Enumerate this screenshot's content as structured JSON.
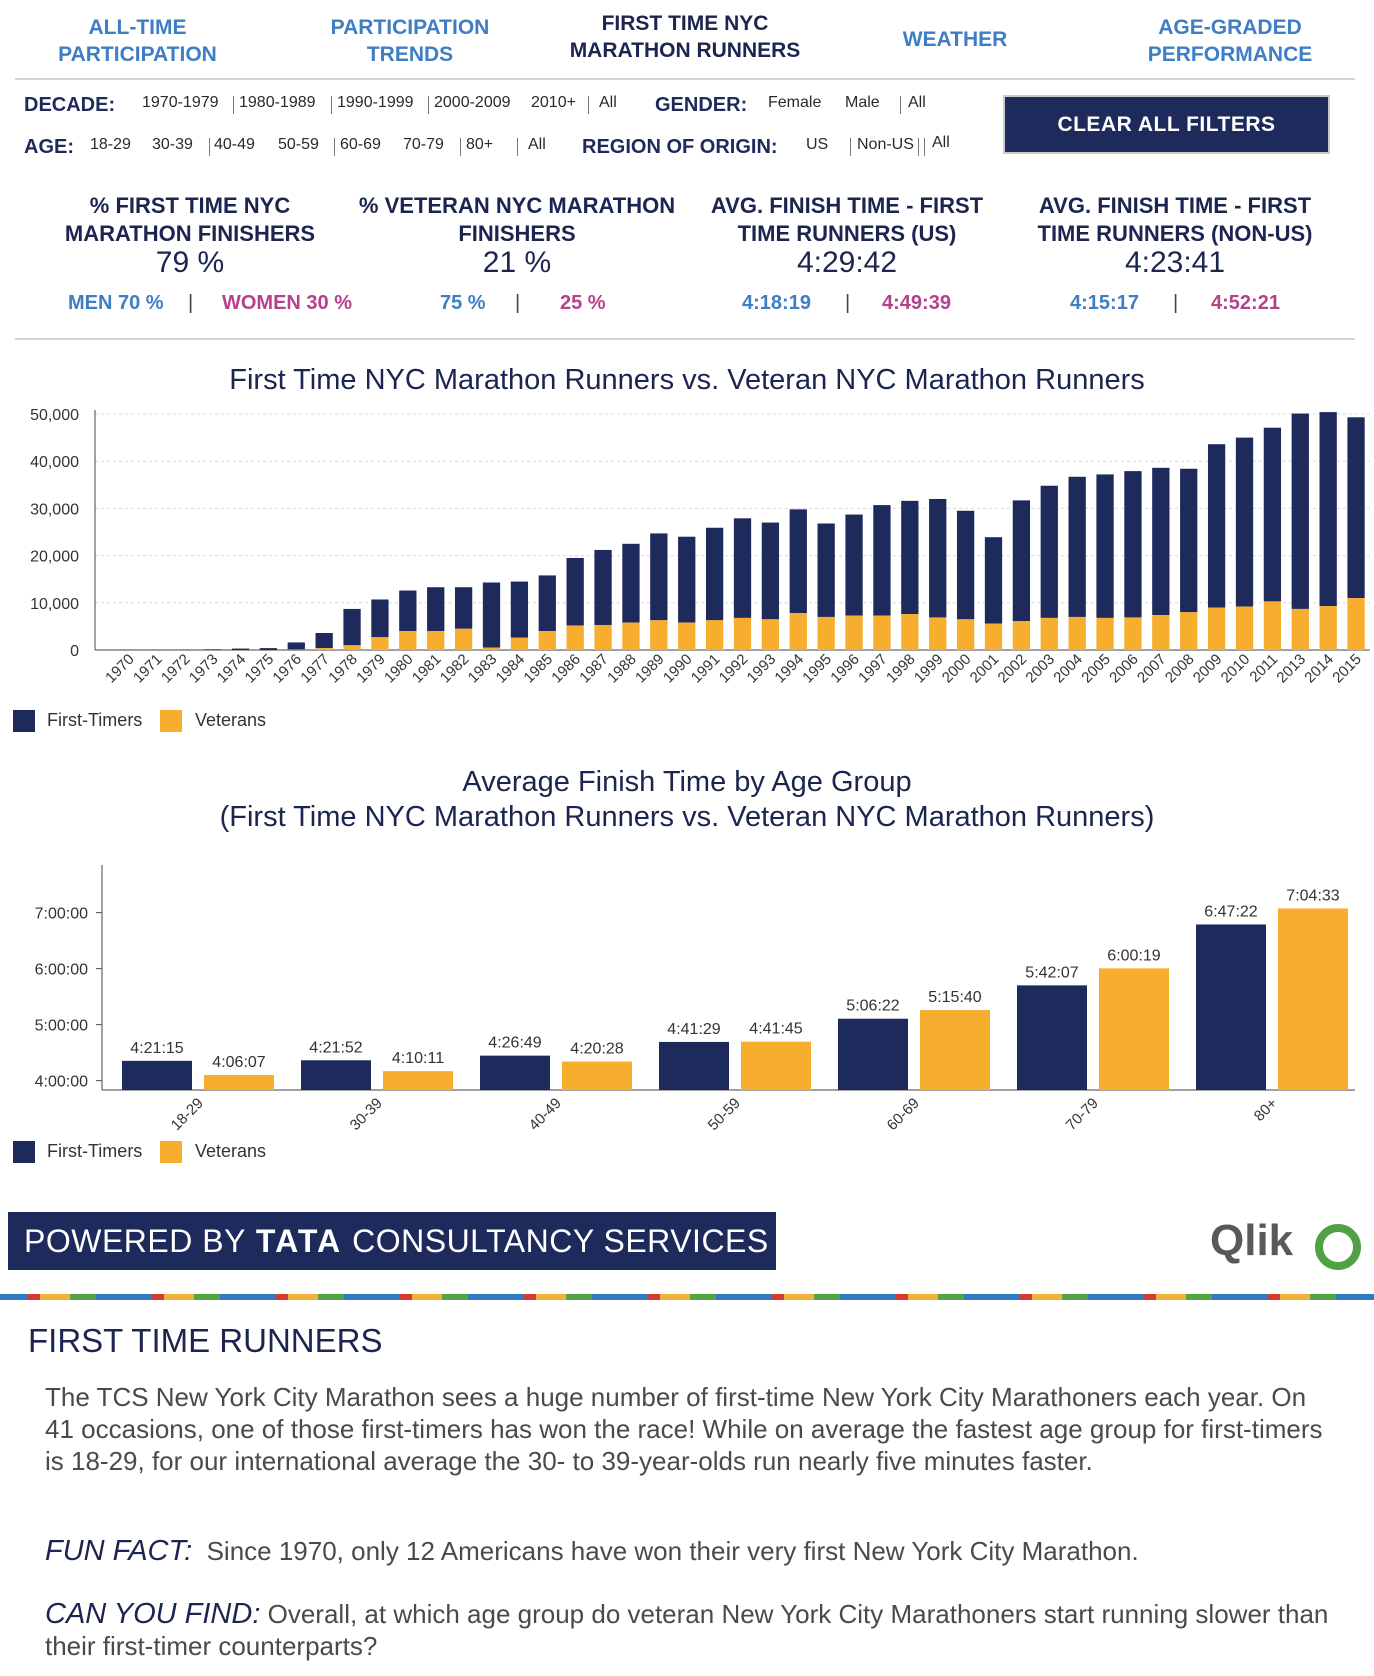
{
  "nav": {
    "tabs": [
      {
        "label_line1": "ALL-TIME",
        "label_line2": "PARTICIPATION"
      },
      {
        "label_line1": "PARTICIPATION",
        "label_line2": "TRENDS"
      },
      {
        "label_line1": "FIRST TIME NYC",
        "label_line2": "MARATHON RUNNERS"
      },
      {
        "label_line1": "WEATHER",
        "label_line2": ""
      },
      {
        "label_line1": "AGE-GRADED",
        "label_line2": "PERFORMANCE"
      }
    ],
    "active_index": 2
  },
  "filters": {
    "decade": {
      "label": "DECADE:",
      "options": [
        "1970-1979",
        "1980-1989",
        "1990-1999",
        "2000-2009",
        "2010+",
        "All"
      ]
    },
    "gender": {
      "label": "GENDER:",
      "options": [
        "Female",
        "Male",
        "All"
      ]
    },
    "age": {
      "label": "AGE:",
      "options": [
        "18-29",
        "30-39",
        "40-49",
        "50-59",
        "60-69",
        "70-79",
        "80+",
        "All"
      ]
    },
    "region": {
      "label": "REGION OF ORIGIN:",
      "options": [
        "US",
        "Non-US",
        "All"
      ]
    },
    "clear_label": "CLEAR ALL FILTERS"
  },
  "kpis": [
    {
      "title_line1": "% FIRST TIME NYC",
      "title_line2": "MARATHON FINISHERS",
      "value": "79 %",
      "left": "MEN 70 %",
      "right": "WOMEN 30 %"
    },
    {
      "title_line1": "% VETERAN NYC MARATHON",
      "title_line2": "FINISHERS",
      "value": "21 %",
      "left": "75 %",
      "right": "25 %"
    },
    {
      "title_line1": "AVG. FINISH TIME - FIRST",
      "title_line2": "TIME RUNNERS (US)",
      "value": "4:29:42",
      "left": "4:18:19",
      "right": "4:49:39"
    },
    {
      "title_line1": "AVG. FINISH TIME - FIRST",
      "title_line2": "TIME RUNNERS (NON-US)",
      "value": "4:23:41",
      "left": "4:15:17",
      "right": "4:52:21"
    }
  ],
  "colors": {
    "navy": "#1f2a5c",
    "orange": "#f7ad2e",
    "blue": "#3f7dc4",
    "pink": "#b5418c"
  },
  "chart_data": [
    {
      "type": "bar",
      "stacked": true,
      "title": "First Time NYC Marathon Runners vs. Veteran NYC Marathon Runners",
      "categories": [
        "1970",
        "1971",
        "1972",
        "1973",
        "1974",
        "1975",
        "1976",
        "1977",
        "1978",
        "1979",
        "1980",
        "1981",
        "1982",
        "1983",
        "1984",
        "1985",
        "1986",
        "1987",
        "1988",
        "1989",
        "1990",
        "1991",
        "1992",
        "1993",
        "1994",
        "1995",
        "1996",
        "1997",
        "1998",
        "1999",
        "2000",
        "2001",
        "2002",
        "2003",
        "2004",
        "2005",
        "2006",
        "2007",
        "2008",
        "2009",
        "2010",
        "2011",
        "2013",
        "2014",
        "2015"
      ],
      "series": [
        {
          "name": "First-Timers",
          "values": [
            50,
            50,
            100,
            150,
            300,
            400,
            1500,
            3200,
            7700,
            8000,
            8600,
            9300,
            8800,
            13800,
            11900,
            11800,
            14300,
            15900,
            16700,
            18400,
            18200,
            19600,
            21100,
            20500,
            22000,
            19800,
            21400,
            23400,
            24000,
            25100,
            23000,
            18300,
            25600,
            28000,
            29700,
            30400,
            31000,
            31200,
            30400,
            34600,
            35800,
            36800,
            41400,
            41100,
            38300
          ]
        },
        {
          "name": "Veterans",
          "values": [
            0,
            0,
            0,
            0,
            0,
            0,
            100,
            400,
            1000,
            2700,
            4000,
            4000,
            4500,
            500,
            2600,
            4000,
            5200,
            5300,
            5800,
            6300,
            5800,
            6300,
            6800,
            6500,
            7800,
            7000,
            7300,
            7300,
            7600,
            6900,
            6500,
            5600,
            6100,
            6800,
            7000,
            6800,
            6900,
            7400,
            8000,
            9000,
            9200,
            10300,
            8700,
            9300,
            11000
          ]
        }
      ],
      "ylim": [
        0,
        50000
      ],
      "yticks": [
        "0",
        "10,000",
        "20,000",
        "30,000",
        "40,000",
        "50,000"
      ],
      "legend": [
        "First-Timers",
        "Veterans"
      ],
      "legend_position": "bottom-left",
      "grid": true
    },
    {
      "type": "bar",
      "title_line1": "Average Finish Time by Age Group",
      "title_line2": "(First Time NYC Marathon Runners vs. Veteran NYC Marathon Runners)",
      "categories": [
        "18-29",
        "30-39",
        "40-49",
        "50-59",
        "60-69",
        "70-79",
        "80+"
      ],
      "series": [
        {
          "name": "First-Timers",
          "values": [
            "4:21:15",
            "4:21:52",
            "4:26:49",
            "4:41:29",
            "5:06:22",
            "5:42:07",
            "6:47:22"
          ]
        },
        {
          "name": "Veterans",
          "values": [
            "4:06:07",
            "4:10:11",
            "4:20:28",
            "4:41:45",
            "5:15:40",
            "6:00:19",
            "7:04:33"
          ]
        }
      ],
      "yticks": [
        "4:00:00",
        "5:00:00",
        "6:00:00",
        "7:00:00"
      ],
      "legend": [
        "First-Timers",
        "Veterans"
      ],
      "legend_position": "bottom-left"
    }
  ],
  "banner": {
    "prefix": "POWERED BY",
    "brand": "TATA",
    "suffix": "CONSULTANCY SERVICES"
  },
  "qlik_logo": "Qlik",
  "article": {
    "title": "FIRST TIME RUNNERS",
    "body": "The TCS New York City Marathon sees a huge number of first-time New York City Marathoners each year. On 41 occasions, one of those first-timers has won the race! While on average the fastest age group for first-timers is 18-29, for our international average the 30- to 39-year-olds run nearly five minutes faster.",
    "fun_fact_label": "FUN FACT:",
    "fun_fact_text": "Since 1970, only 12 Americans have won their very first New York City Marathon.",
    "can_you_find_label": "CAN YOU FIND:",
    "can_you_find_text": "Overall, at which age group do veteran New York City Marathoners start running slower than their first-timer counterparts?"
  }
}
